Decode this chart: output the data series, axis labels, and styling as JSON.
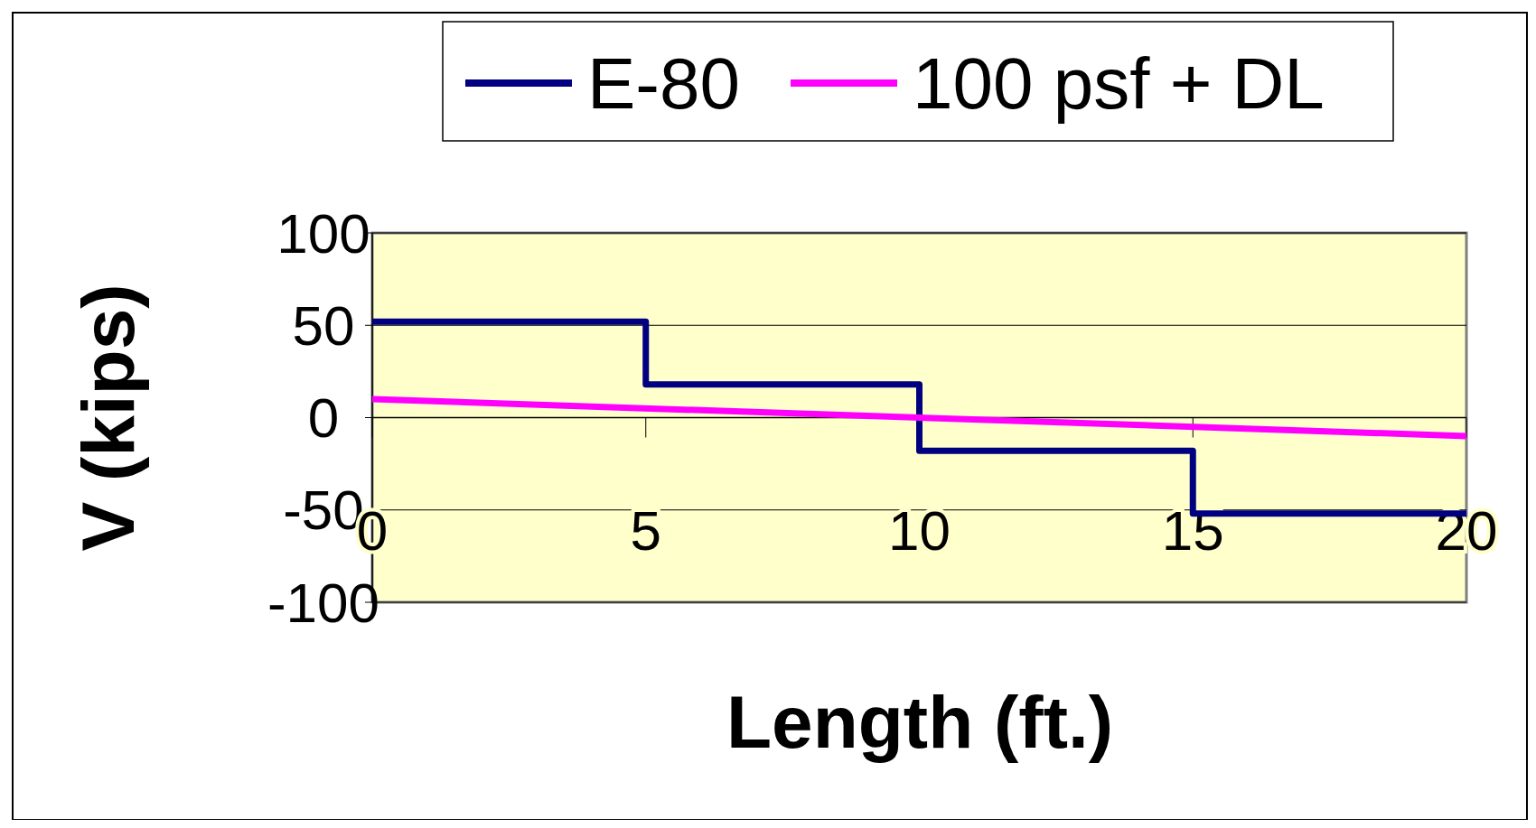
{
  "chart_data": {
    "type": "step",
    "xlabel": "Length (ft.)",
    "ylabel": "V (kips)",
    "xlim": [
      0,
      20
    ],
    "xticks": [
      0,
      5,
      10,
      15,
      20
    ],
    "ylim": [
      -100,
      100
    ],
    "yticks": [
      -100,
      -50,
      0,
      50,
      100
    ],
    "grid": "y",
    "legend": "top",
    "marker": "none",
    "series": [
      {
        "name": "E-80",
        "color": "#000080",
        "x": [
          0,
          5,
          10,
          15,
          20
        ],
        "values": [
          52,
          18,
          -18,
          -52,
          -52
        ]
      },
      {
        "name": "100 psf + DL",
        "type": "line",
        "color": "#ff00ff",
        "x": [
          0,
          20
        ],
        "values": [
          10,
          -10
        ]
      }
    ]
  }
}
